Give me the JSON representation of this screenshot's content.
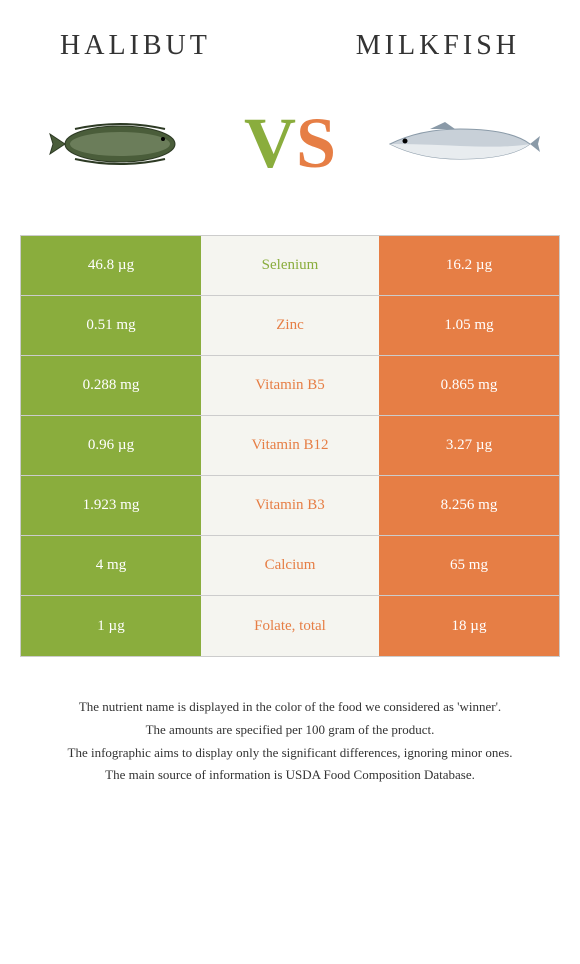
{
  "header": {
    "left_title": "Halibut",
    "right_title": "Milkfish"
  },
  "vs": {
    "v": "V",
    "s": "S"
  },
  "colors": {
    "green": "#8aad3d",
    "orange": "#e67e45"
  },
  "rows": [
    {
      "left": "46.8 µg",
      "nutrient": "Selenium",
      "right": "16.2 µg",
      "winner": "left"
    },
    {
      "left": "0.51 mg",
      "nutrient": "Zinc",
      "right": "1.05 mg",
      "winner": "right"
    },
    {
      "left": "0.288 mg",
      "nutrient": "Vitamin B5",
      "right": "0.865 mg",
      "winner": "right"
    },
    {
      "left": "0.96 µg",
      "nutrient": "Vitamin B12",
      "right": "3.27 µg",
      "winner": "right"
    },
    {
      "left": "1.923 mg",
      "nutrient": "Vitamin B3",
      "right": "8.256 mg",
      "winner": "right"
    },
    {
      "left": "4 mg",
      "nutrient": "Calcium",
      "right": "65 mg",
      "winner": "right"
    },
    {
      "left": "1 µg",
      "nutrient": "Folate, total",
      "right": "18 µg",
      "winner": "right"
    }
  ],
  "footer": {
    "line1": "The nutrient name is displayed in the color of the food we considered as 'winner'.",
    "line2": "The amounts are specified per 100 gram of the product.",
    "line3": "The infographic aims to display only the significant differences, ignoring minor ones.",
    "line4": "The main source of information is USDA Food Composition Database."
  }
}
